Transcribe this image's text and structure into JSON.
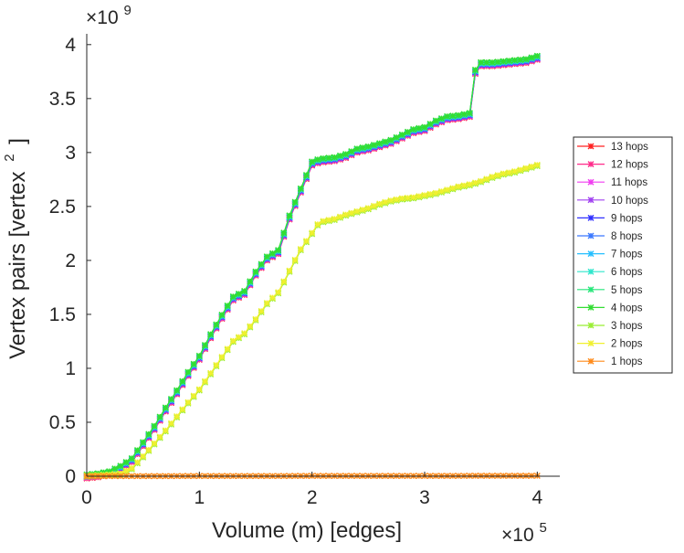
{
  "chart_data": {
    "type": "line",
    "title": "",
    "xlabel": "Volume (m) [edges]",
    "ylabel": "Vertex pairs [vertex",
    "ylabel_superscript": "2",
    "ylabel_close": "]",
    "x_exponent_label": "×10",
    "x_exponent": "5",
    "y_exponent_label": "×10",
    "y_exponent": "9",
    "xlim": [
      0,
      4.2
    ],
    "ylim": [
      0,
      4.1
    ],
    "x_unit_scale": 100000,
    "y_unit_scale": 1000000000,
    "xticks": [
      0,
      1,
      2,
      3,
      4
    ],
    "xtick_labels": [
      "0",
      "1",
      "2",
      "3",
      "4"
    ],
    "yticks": [
      0,
      0.5,
      1,
      1.5,
      2,
      2.5,
      3,
      3.5,
      4
    ],
    "ytick_labels": [
      "0",
      "0.5",
      "1",
      "1.5",
      "2",
      "2.5",
      "3",
      "3.5",
      "4"
    ],
    "grid": false,
    "legend_position": "right",
    "series": [
      {
        "name": "13 hops",
        "color": "#ff2020",
        "curve": "upper"
      },
      {
        "name": "12 hops",
        "color": "#ff2a8a",
        "curve": "upper"
      },
      {
        "name": "11 hops",
        "color": "#f03cf0",
        "curve": "upper"
      },
      {
        "name": "10 hops",
        "color": "#a040f0",
        "curve": "upper"
      },
      {
        "name": "9 hops",
        "color": "#3030ff",
        "curve": "upper"
      },
      {
        "name": "8 hops",
        "color": "#3a78ff",
        "curve": "upper"
      },
      {
        "name": "7 hops",
        "color": "#26bfff",
        "curve": "upper"
      },
      {
        "name": "6 hops",
        "color": "#2ee6cc",
        "curve": "upper"
      },
      {
        "name": "5 hops",
        "color": "#27e67a",
        "curve": "upper"
      },
      {
        "name": "4 hops",
        "color": "#33dd33",
        "curve": "upper"
      },
      {
        "name": "3 hops",
        "color": "#99ee33",
        "curve": "middle"
      },
      {
        "name": "2 hops",
        "color": "#f0f030",
        "curve": "middle"
      },
      {
        "name": "1 hops",
        "color": "#ff8a1a",
        "curve": "flat"
      }
    ],
    "curves": {
      "upper": {
        "x": [
          0,
          0.1,
          0.2,
          0.3,
          0.4,
          0.5,
          0.6,
          0.7,
          0.8,
          0.9,
          1.0,
          1.1,
          1.2,
          1.3,
          1.4,
          1.5,
          1.6,
          1.7,
          1.8,
          1.9,
          2.0,
          2.05,
          2.1,
          2.2,
          2.3,
          2.4,
          2.5,
          2.6,
          2.7,
          2.8,
          2.9,
          3.0,
          3.1,
          3.2,
          3.3,
          3.4,
          3.45,
          3.5,
          3.6,
          3.7,
          3.8,
          3.9,
          4.0
        ],
        "y": [
          0,
          0.01,
          0.03,
          0.08,
          0.15,
          0.3,
          0.45,
          0.62,
          0.78,
          0.95,
          1.1,
          1.3,
          1.48,
          1.65,
          1.7,
          1.88,
          2.02,
          2.08,
          2.4,
          2.65,
          2.9,
          2.92,
          2.93,
          2.94,
          2.97,
          3.02,
          3.04,
          3.07,
          3.1,
          3.15,
          3.2,
          3.22,
          3.28,
          3.32,
          3.33,
          3.35,
          3.75,
          3.82,
          3.82,
          3.83,
          3.84,
          3.85,
          3.88
        ]
      },
      "middle": {
        "x": [
          0,
          0.2,
          0.3,
          0.4,
          0.5,
          0.6,
          0.7,
          0.8,
          0.9,
          1.0,
          1.1,
          1.2,
          1.3,
          1.4,
          1.5,
          1.6,
          1.7,
          1.8,
          1.9,
          2.0,
          2.05,
          2.1,
          2.2,
          2.3,
          2.4,
          2.5,
          2.6,
          2.7,
          2.8,
          2.9,
          3.0,
          3.1,
          3.2,
          3.3,
          3.4,
          3.5,
          3.6,
          3.7,
          3.8,
          3.9,
          4.0
        ],
        "y": [
          0,
          0.01,
          0.02,
          0.07,
          0.18,
          0.3,
          0.42,
          0.55,
          0.68,
          0.8,
          0.95,
          1.1,
          1.25,
          1.32,
          1.45,
          1.6,
          1.7,
          1.9,
          2.1,
          2.25,
          2.33,
          2.36,
          2.38,
          2.42,
          2.45,
          2.48,
          2.52,
          2.55,
          2.57,
          2.58,
          2.6,
          2.62,
          2.65,
          2.68,
          2.7,
          2.73,
          2.77,
          2.8,
          2.82,
          2.85,
          2.88
        ]
      },
      "flat": {
        "x": [
          0,
          0.5,
          1.0,
          1.5,
          2.0,
          2.5,
          3.0,
          3.5,
          4.0
        ],
        "y": [
          0.001,
          0.001,
          0.002,
          0.002,
          0.003,
          0.003,
          0.003,
          0.004,
          0.004
        ]
      }
    }
  }
}
